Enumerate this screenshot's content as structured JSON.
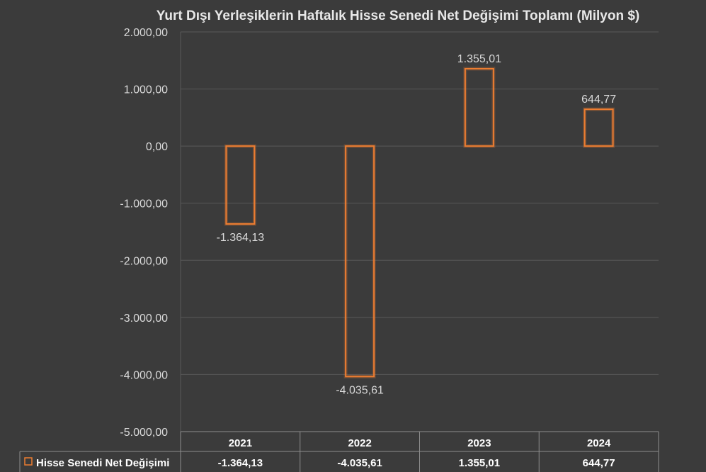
{
  "chart_data": {
    "type": "bar",
    "title": "Yurt Dışı Yerleşiklerin Haftalık Hisse Senedi Net Değişimi Toplamı (Milyon $)",
    "categories": [
      "2021",
      "2022",
      "2023",
      "2024"
    ],
    "series": [
      {
        "name": "Hisse Senedi Net Değişimi",
        "values": [
          -1364.13,
          -4035.61,
          1355.01,
          644.77
        ],
        "labels": [
          "-1.364,13",
          "-4.035,61",
          "1.355,01",
          "644,77"
        ],
        "color": "#ed7d31"
      }
    ],
    "ylim": [
      -5000,
      2000
    ],
    "yticks": [
      2000,
      1000,
      0,
      -1000,
      -2000,
      -3000,
      -4000,
      -5000
    ],
    "ytick_labels": [
      "2.000,00",
      "1.000,00",
      "0,00",
      "-1.000,00",
      "-2.000,00",
      "-3.000,00",
      "-4.000,00",
      "-5.000,00"
    ],
    "grid": true,
    "legend": "data-table",
    "data_table": true
  }
}
